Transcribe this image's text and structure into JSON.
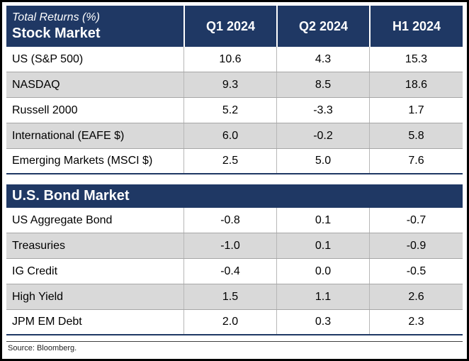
{
  "title": "Total Returns (%)",
  "columns": [
    "Q1 2024",
    "Q2 2024",
    "H1 2024"
  ],
  "source": "Source: Bloomberg.",
  "colors": {
    "navy": "#1F3864",
    "alt_row": "#D9D9D9",
    "header_text": "#FFFFFF"
  },
  "chart_data": [
    {
      "type": "table",
      "title": "Stock Market",
      "columns": [
        "Q1 2024",
        "Q2 2024",
        "H1 2024"
      ],
      "rows": [
        {
          "label": "US (S&P 500)",
          "values": [
            "10.6",
            "4.3",
            "15.3"
          ]
        },
        {
          "label": "NASDAQ",
          "values": [
            "9.3",
            "8.5",
            "18.6"
          ]
        },
        {
          "label": "Russell 2000",
          "values": [
            "5.2",
            "-3.3",
            "1.7"
          ]
        },
        {
          "label": "International (EAFE $)",
          "values": [
            "6.0",
            "-0.2",
            "5.8"
          ]
        },
        {
          "label": "Emerging Markets (MSCI $)",
          "values": [
            "2.5",
            "5.0",
            "7.6"
          ]
        }
      ]
    },
    {
      "type": "table",
      "title": "U.S. Bond Market",
      "columns": [
        "Q1 2024",
        "Q2 2024",
        "H1 2024"
      ],
      "rows": [
        {
          "label": "US Aggregate Bond",
          "values": [
            "-0.8",
            "0.1",
            "-0.7"
          ]
        },
        {
          "label": "Treasuries",
          "values": [
            "-1.0",
            "0.1",
            "-0.9"
          ]
        },
        {
          "label": "IG Credit",
          "values": [
            "-0.4",
            "0.0",
            "-0.5"
          ]
        },
        {
          "label": "High Yield",
          "values": [
            "1.5",
            "1.1",
            "2.6"
          ]
        },
        {
          "label": "JPM EM Debt",
          "values": [
            "2.0",
            "0.3",
            "2.3"
          ]
        }
      ]
    }
  ]
}
